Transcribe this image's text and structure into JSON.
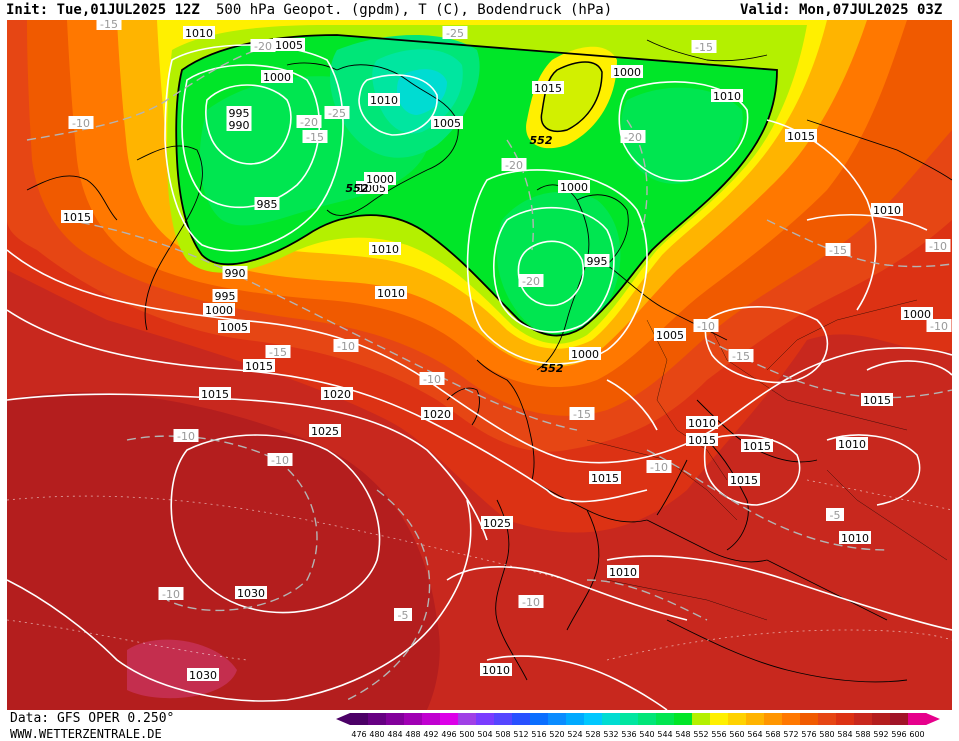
{
  "header": {
    "init": "Init: Tue,01JUL2025 12Z",
    "title": "500 hPa Geopot. (gpdm), T (C), Bodendruck (hPa)",
    "valid": "Valid: Mon,07JUL2025 03Z"
  },
  "footer": {
    "source": "Data: GFS OPER 0.250°",
    "website": "WWW.WETTERZENTRALE.DE"
  },
  "legend": {
    "values": [
      "476",
      "480",
      "484",
      "488",
      "492",
      "496",
      "500",
      "504",
      "508",
      "512",
      "516",
      "520",
      "524",
      "528",
      "532",
      "536",
      "540",
      "544",
      "548",
      "552",
      "556",
      "560",
      "564",
      "568",
      "572",
      "576",
      "580",
      "584",
      "588",
      "592",
      "596",
      "600"
    ],
    "colors": [
      "#4b0066",
      "#660082",
      "#82009b",
      "#a000b4",
      "#c000d0",
      "#dc00e8",
      "#a040e6",
      "#7a3cff",
      "#5546ff",
      "#2850ff",
      "#0a6eff",
      "#0a8cff",
      "#00aaff",
      "#00c8ff",
      "#00dcd2",
      "#00e6a0",
      "#00e678",
      "#00e650",
      "#00e628",
      "#b4f000",
      "#fff000",
      "#ffd200",
      "#ffb400",
      "#ff9600",
      "#ff7800",
      "#f05a00",
      "#e64614",
      "#dc3214",
      "#c8281e",
      "#b41e1e",
      "#a01428",
      "#e6008c"
    ]
  },
  "isobar_labels": [
    "1010",
    "1005",
    "1000",
    "995",
    "990",
    "985",
    "1000",
    "1005",
    "1015",
    "1000",
    "1005",
    "1010",
    "1010",
    "1000",
    "1000",
    "995",
    "1005",
    "1010",
    "1015",
    "1000",
    "1015",
    "1005",
    "1015",
    "1010",
    "1015",
    "1020",
    "1025",
    "1030",
    "1030",
    "1025",
    "1020",
    "1015",
    "1010",
    "1015",
    "1010",
    "1015",
    "1010",
    "1010",
    "1010",
    "1005",
    "1000"
  ],
  "isobar_label_values": {
    "items": [
      {
        "t": "1010"
      },
      {
        "t": "1005"
      },
      {
        "t": "1000"
      },
      {
        "t": "995"
      },
      {
        "t": "990"
      },
      {
        "t": "985"
      },
      {
        "t": "990"
      },
      {
        "t": "995"
      },
      {
        "t": "1000"
      },
      {
        "t": "1005"
      },
      {
        "t": "1015"
      },
      {
        "t": "1010"
      },
      {
        "t": "1005"
      },
      {
        "t": "1000"
      },
      {
        "t": "1010"
      },
      {
        "t": "1010"
      },
      {
        "t": "1015"
      },
      {
        "t": "1000"
      },
      {
        "t": "1000"
      },
      {
        "t": "995"
      },
      {
        "t": "1000"
      },
      {
        "t": "1005"
      },
      {
        "t": "1015"
      },
      {
        "t": "1010"
      },
      {
        "t": "1000"
      },
      {
        "t": "1015"
      },
      {
        "t": "1015"
      },
      {
        "t": "1020"
      },
      {
        "t": "1025"
      },
      {
        "t": "1030"
      },
      {
        "t": "1030"
      },
      {
        "t": "1025"
      },
      {
        "t": "1020"
      },
      {
        "t": "1015"
      },
      {
        "t": "1010"
      },
      {
        "t": "1010"
      },
      {
        "t": "1010"
      },
      {
        "t": "1015"
      },
      {
        "t": "1015"
      },
      {
        "t": "1010"
      },
      {
        "t": "1015"
      },
      {
        "t": "1010"
      },
      {
        "t": "1015"
      },
      {
        "t": "1010"
      },
      {
        "t": "1005"
      }
    ]
  },
  "temp_labels": {
    "items": [
      {
        "t": "-15"
      },
      {
        "t": "-20"
      },
      {
        "t": "-25"
      },
      {
        "t": "-20"
      },
      {
        "t": "-25"
      },
      {
        "t": "-15"
      },
      {
        "t": "-10"
      },
      {
        "t": "-20"
      },
      {
        "t": "-15"
      },
      {
        "t": "-20"
      },
      {
        "t": "-20"
      },
      {
        "t": "-15"
      },
      {
        "t": "-15"
      },
      {
        "t": "-10"
      },
      {
        "t": "-10"
      },
      {
        "t": "-10"
      },
      {
        "t": "-15"
      },
      {
        "t": "-10"
      },
      {
        "t": "-10"
      },
      {
        "t": "-10"
      },
      {
        "t": "-15"
      },
      {
        "t": "-10"
      },
      {
        "t": "-10"
      },
      {
        "t": "-5"
      },
      {
        "t": "-10"
      },
      {
        "t": "-5"
      },
      {
        "t": "-10"
      }
    ]
  },
  "contour_labels": {
    "items": [
      {
        "t": "552"
      },
      {
        "t": "552"
      },
      {
        "t": "552"
      }
    ]
  }
}
